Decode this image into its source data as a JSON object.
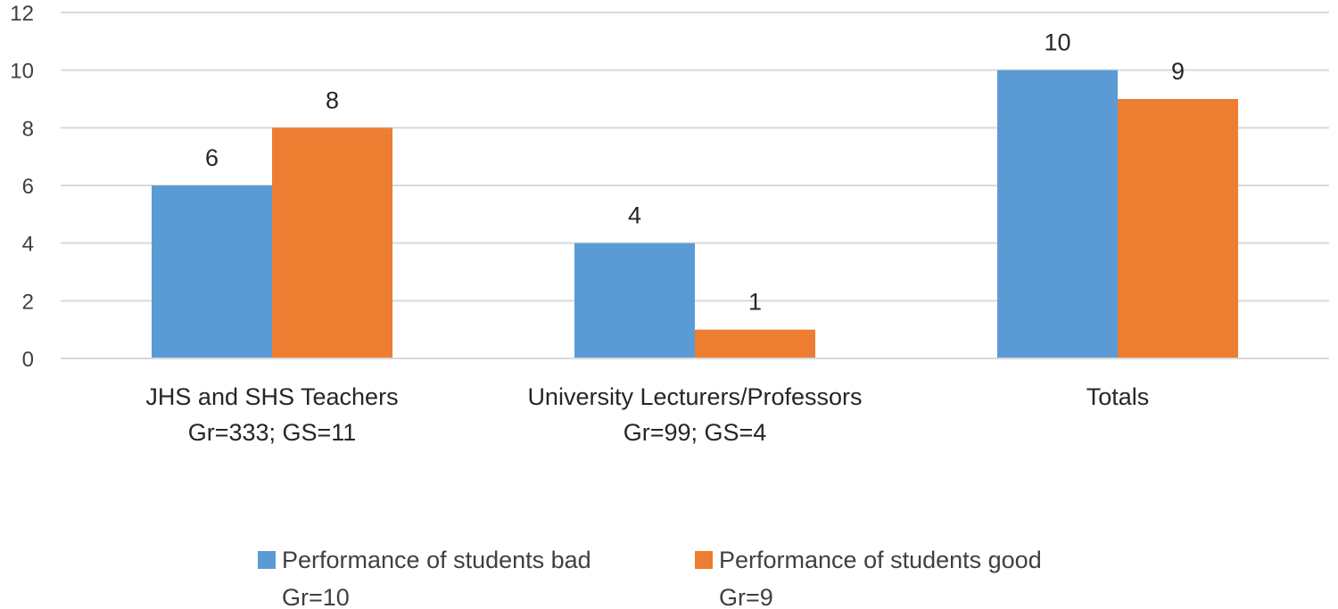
{
  "chart_data": {
    "type": "bar",
    "title": "",
    "xlabel": "",
    "ylabel": "",
    "ylim": [
      0,
      12
    ],
    "yticks": [
      0,
      2,
      4,
      6,
      8,
      10,
      12
    ],
    "grid": true,
    "legend_position": "bottom",
    "categories": [
      [
        "JHS and SHS Teachers",
        "Gr=333;  GS=11"
      ],
      [
        "University Lecturers/Professors",
        "Gr=99;  GS=4"
      ],
      [
        "Totals"
      ]
    ],
    "series": [
      {
        "name": "Performance of students bad",
        "legend_lines": [
          "Performance of students bad",
          "Gr=10"
        ],
        "color": "#5B9BD5",
        "values": [
          6,
          4,
          10
        ]
      },
      {
        "name": "Performance of students good",
        "legend_lines": [
          "Performance of students good",
          "Gr=9"
        ],
        "color": "#ED7D31",
        "values": [
          8,
          1,
          9
        ]
      }
    ],
    "data_labels": true
  }
}
